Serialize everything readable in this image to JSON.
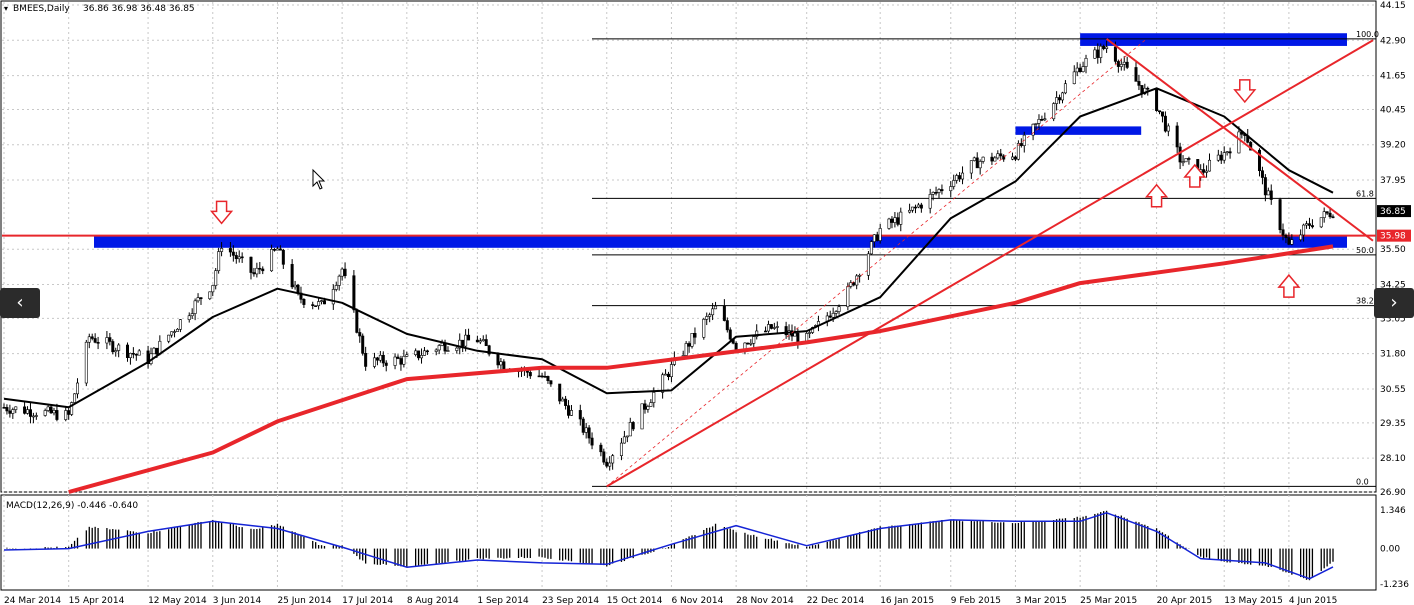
{
  "chart_data": [
    {
      "type": "candlestick",
      "title": "BMEES,Daily",
      "ohlc_readout": [
        "36.86",
        "36.98",
        "36.48",
        "36.85"
      ],
      "price_axis_ticks": [
        "44.15",
        "42.90",
        "41.65",
        "40.45",
        "39.20",
        "37.95",
        "36.85",
        "35.98",
        "35.50",
        "34.25",
        "33.05",
        "31.80",
        "30.55",
        "29.35",
        "28.10",
        "26.90"
      ],
      "ylim": [
        26.9,
        44.15
      ],
      "date_axis_ticks": [
        "24 Mar 2014",
        "15 Apr 2014",
        "12 May 2014",
        "3 Jun 2014",
        "25 Jun 2014",
        "17 Jul 2014",
        "8 Aug 2014",
        "1 Sep 2014",
        "23 Sep 2014",
        "15 Oct 2014",
        "6 Nov 2014",
        "28 Nov 2014",
        "22 Dec 2014",
        "16 Jan 2015",
        "9 Feb 2015",
        "3 Mar 2015",
        "25 Mar 2015",
        "20 Apr 2015",
        "13 May 2015",
        "4 Jun 2015"
      ],
      "current_price_label": "36.85",
      "red_level_label": "35.98",
      "close_keypoints": [
        [
          "24 Mar 2014",
          29.9
        ],
        [
          "15 Apr 2014",
          29.6
        ],
        [
          "22 Apr 2014",
          32.4
        ],
        [
          "12 May 2014",
          31.6
        ],
        [
          "3 Jun 2014",
          34.3
        ],
        [
          "6 Jun 2014",
          35.7
        ],
        [
          "17 Jun 2014",
          34.6
        ],
        [
          "25 Jun 2014",
          35.5
        ],
        [
          "2 Jul 2014",
          33.8
        ],
        [
          "10 Jul 2014",
          33.5
        ],
        [
          "17 Jul 2014",
          34.8
        ],
        [
          "25 Jul 2014",
          31.5
        ],
        [
          "8 Aug 2014",
          31.6
        ],
        [
          "20 Aug 2014",
          32.1
        ],
        [
          "1 Sep 2014",
          32.3
        ],
        [
          "10 Sep 2014",
          31.4
        ],
        [
          "23 Sep 2014",
          31.0
        ],
        [
          "3 Oct 2014",
          29.7
        ],
        [
          "15 Oct 2014",
          28.0
        ],
        [
          "27 Oct 2014",
          29.8
        ],
        [
          "6 Nov 2014",
          31.3
        ],
        [
          "17 Nov 2014",
          32.9
        ],
        [
          "21 Nov 2014",
          33.4
        ],
        [
          "28 Nov 2014",
          32.1
        ],
        [
          "10 Dec 2014",
          32.7
        ],
        [
          "22 Dec 2014",
          32.3
        ],
        [
          "5 Jan 2015",
          34.0
        ],
        [
          "16 Jan 2015",
          36.2
        ],
        [
          "26 Jan 2015",
          36.8
        ],
        [
          "9 Feb 2015",
          37.9
        ],
        [
          "18 Feb 2015",
          38.6
        ],
        [
          "3 Mar 2015",
          38.9
        ],
        [
          "13 Mar 2015",
          40.3
        ],
        [
          "25 Mar 2015",
          42.0
        ],
        [
          "3 Apr 2015",
          42.7
        ],
        [
          "10 Apr 2015",
          41.8
        ],
        [
          "20 Apr 2015",
          40.6
        ],
        [
          "28 Apr 2015",
          38.7
        ],
        [
          "5 May 2015",
          38.2
        ],
        [
          "13 May 2015",
          38.9
        ],
        [
          "20 May 2015",
          39.7
        ],
        [
          "27 May 2015",
          37.6
        ],
        [
          "4 Jun 2015",
          35.6
        ],
        [
          "11 Jun 2015",
          36.4
        ],
        [
          "19 Jun 2015",
          36.85
        ]
      ],
      "moving_averages": [
        {
          "color": "#000000",
          "keypoints": [
            [
              "24 Mar 2014",
              30.2
            ],
            [
              "15 Apr 2014",
              29.9
            ],
            [
              "12 May 2014",
              31.5
            ],
            [
              "3 Jun 2014",
              33.1
            ],
            [
              "25 Jun 2014",
              34.1
            ],
            [
              "17 Jul 2014",
              33.6
            ],
            [
              "8 Aug 2014",
              32.5
            ],
            [
              "1 Sep 2014",
              31.9
            ],
            [
              "23 Sep 2014",
              31.6
            ],
            [
              "15 Oct 2014",
              30.4
            ],
            [
              "6 Nov 2014",
              30.5
            ],
            [
              "28 Nov 2014",
              32.4
            ],
            [
              "22 Dec 2014",
              32.6
            ],
            [
              "16 Jan 2015",
              33.8
            ],
            [
              "9 Feb 2015",
              36.6
            ],
            [
              "3 Mar 2015",
              37.9
            ],
            [
              "25 Mar 2015",
              40.2
            ],
            [
              "20 Apr 2015",
              41.2
            ],
            [
              "13 May 2015",
              40.2
            ],
            [
              "4 Jun 2015",
              38.3
            ],
            [
              "19 Jun 2015",
              37.5
            ]
          ]
        },
        {
          "color": "#e8262b",
          "keypoints": [
            [
              "15 Apr 2014",
              26.9
            ],
            [
              "3 Jun 2014",
              28.3
            ],
            [
              "25 Jun 2014",
              29.4
            ],
            [
              "8 Aug 2014",
              30.9
            ],
            [
              "23 Sep 2014",
              31.3
            ],
            [
              "15 Oct 2014",
              31.3
            ],
            [
              "22 Dec 2014",
              32.2
            ],
            [
              "16 Jan 2015",
              32.6
            ],
            [
              "3 Mar 2015",
              33.6
            ],
            [
              "25 Mar 2015",
              34.3
            ],
            [
              "13 May 2015",
              35.0
            ],
            [
              "19 Jun 2015",
              35.6
            ]
          ]
        }
      ],
      "fibonacci_levels": [
        {
          "label": "100.0",
          "value": 42.95
        },
        {
          "label": "61.8",
          "value": 37.3
        },
        {
          "label": "50.0",
          "value": 35.3
        },
        {
          "label": "38.2",
          "value": 33.5
        },
        {
          "label": "0.0",
          "value": 27.1
        }
      ],
      "zones": [
        {
          "color": "#0018e6",
          "from": "24 Mar 2014",
          "to": "19 Jun 2015",
          "low": 35.55,
          "high": 36.0
        },
        {
          "color": "#0018e6",
          "from": "3 Mar 2015",
          "to": "10 Apr 2015",
          "low": 39.55,
          "high": 39.85
        },
        {
          "color": "#0018e6",
          "from": "25 Mar 2015",
          "to": "19 Jun 2015",
          "low": 42.7,
          "high": 43.15
        }
      ],
      "horizontal_lines": [
        {
          "color": "#e8262b",
          "value": 35.98
        }
      ],
      "trend_lines": [
        {
          "color": "#e8262b",
          "from": [
            "15 Oct 2014",
            27.1
          ],
          "to": [
            "19 Jun 2015",
            42.9
          ]
        },
        {
          "color": "#e8262b",
          "from": [
            "3 Apr 2015",
            42.95
          ],
          "to": [
            "19 Jun 2015",
            35.8
          ]
        },
        {
          "color": "#e8262b",
          "from": [
            "15 Oct 2014",
            27.1
          ],
          "to": [
            "3 Apr 2015",
            42.95
          ],
          "dashed": true
        }
      ],
      "arrows": [
        {
          "direction": "down",
          "date": "6 Jun 2014",
          "value": 36.7
        },
        {
          "direction": "down",
          "date": "20 May 2015",
          "value": 41.0
        },
        {
          "direction": "up",
          "date": "20 Apr 2015",
          "value": 37.5
        },
        {
          "direction": "up",
          "date": "3 May 2015",
          "value": 38.2
        },
        {
          "direction": "up",
          "date": "4 Jun 2015",
          "value": 34.3
        }
      ],
      "colors": {
        "candle": "#000000",
        "zone": "#0018e6",
        "ema": "#e8262b",
        "fib": "#000000"
      }
    },
    {
      "type": "bar",
      "title": "MACD(12,26,9) -0.446 -0.640",
      "ticks": [
        "1.346",
        "0.00",
        "-1.236"
      ],
      "ylim": [
        -1.236,
        1.346
      ],
      "histogram_keypoints": [
        [
          "24 Mar 2014",
          0.0
        ],
        [
          "15 Apr 2014",
          0.05
        ],
        [
          "22 Apr 2014",
          0.75
        ],
        [
          "12 May 2014",
          0.55
        ],
        [
          "3 Jun 2014",
          1.0
        ],
        [
          "17 Jun 2014",
          0.65
        ],
        [
          "25 Jun 2014",
          0.85
        ],
        [
          "10 Jul 2014",
          0.1
        ],
        [
          "17 Jul 2014",
          0.1
        ],
        [
          "25 Jul 2014",
          -0.5
        ],
        [
          "8 Aug 2014",
          -0.65
        ],
        [
          "1 Sep 2014",
          -0.35
        ],
        [
          "23 Sep 2014",
          -0.3
        ],
        [
          "15 Oct 2014",
          -0.6
        ],
        [
          "6 Nov 2014",
          0.1
        ],
        [
          "21 Nov 2014",
          0.85
        ],
        [
          "28 Nov 2014",
          0.6
        ],
        [
          "22 Dec 2014",
          0.05
        ],
        [
          "16 Jan 2015",
          0.75
        ],
        [
          "9 Feb 2015",
          1.0
        ],
        [
          "3 Mar 2015",
          0.9
        ],
        [
          "25 Mar 2015",
          1.1
        ],
        [
          "3 Apr 2015",
          1.3
        ],
        [
          "20 Apr 2015",
          0.7
        ],
        [
          "5 May 2015",
          -0.3
        ],
        [
          "13 May 2015",
          -0.45
        ],
        [
          "27 May 2015",
          -0.6
        ],
        [
          "11 Jun 2015",
          -1.1
        ],
        [
          "19 Jun 2015",
          -0.446
        ]
      ],
      "signal_keypoints": [
        [
          "24 Mar 2014",
          -0.05
        ],
        [
          "15 Apr 2014",
          0.0
        ],
        [
          "12 May 2014",
          0.6
        ],
        [
          "3 Jun 2014",
          0.95
        ],
        [
          "25 Jun 2014",
          0.7
        ],
        [
          "17 Jul 2014",
          0.05
        ],
        [
          "8 Aug 2014",
          -0.65
        ],
        [
          "1 Sep 2014",
          -0.4
        ],
        [
          "23 Sep 2014",
          -0.5
        ],
        [
          "15 Oct 2014",
          -0.55
        ],
        [
          "6 Nov 2014",
          0.15
        ],
        [
          "28 Nov 2014",
          0.8
        ],
        [
          "22 Dec 2014",
          0.1
        ],
        [
          "16 Jan 2015",
          0.7
        ],
        [
          "9 Feb 2015",
          1.0
        ],
        [
          "3 Mar 2015",
          0.95
        ],
        [
          "25 Mar 2015",
          0.95
        ],
        [
          "3 Apr 2015",
          1.25
        ],
        [
          "20 Apr 2015",
          0.6
        ],
        [
          "5 May 2015",
          -0.35
        ],
        [
          "27 May 2015",
          -0.5
        ],
        [
          "11 Jun 2015",
          -1.05
        ],
        [
          "19 Jun 2015",
          -0.64
        ]
      ],
      "colors": {
        "histogram": "#000000",
        "signal": "#1524d6"
      }
    }
  ],
  "navigation": {
    "prev_icon": "chevron-left-icon",
    "next_icon": "chevron-right-icon",
    "prev_glyph": "‹",
    "next_glyph": "›"
  }
}
